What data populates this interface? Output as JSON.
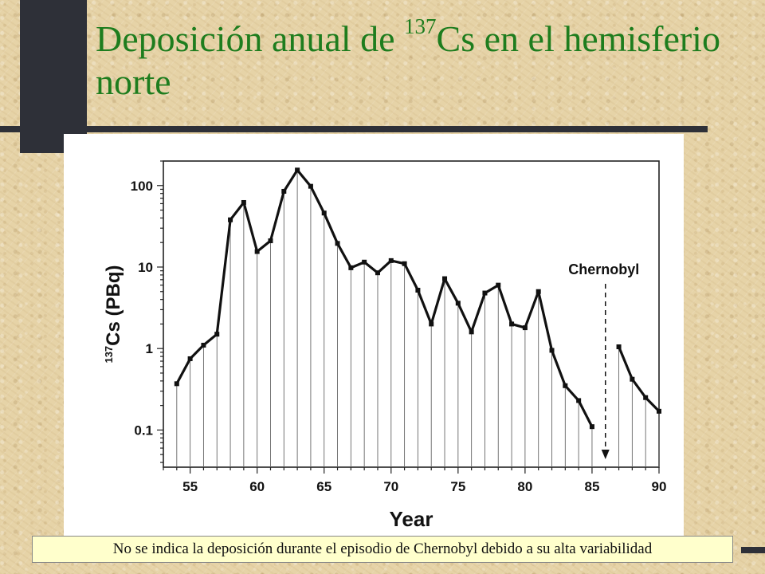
{
  "slide": {
    "title_part1": "Deposición anual de ",
    "title_sup": "137",
    "title_part2": "Cs en el hemisferio norte",
    "footnote": "No se indica la deposición durante el episodio de Chernobyl debido a su alta variabilidad"
  },
  "colors": {
    "title": "#1e7d1e",
    "background": "#e6d3a7",
    "dark_accent": "#2e3038",
    "note_background": "#ffffcc"
  },
  "chart_data": {
    "type": "line",
    "xlabel": "Year",
    "ylabel_sup": "137",
    "ylabel": "Cs (PBq)",
    "y_scale": "log",
    "xlim": [
      53,
      90
    ],
    "ylim": [
      0.035,
      200
    ],
    "x_ticks": [
      55,
      60,
      65,
      70,
      75,
      80,
      85,
      90
    ],
    "y_ticks": [
      {
        "value": 0.1,
        "label": "0.1"
      },
      {
        "value": 1,
        "label": "1"
      },
      {
        "value": 10,
        "label": "10"
      },
      {
        "value": 100,
        "label": "100"
      }
    ],
    "series": [
      {
        "x": [
          54,
          55,
          56,
          57,
          58,
          59,
          60,
          61,
          62,
          63,
          64,
          65,
          66,
          67,
          68,
          69,
          70,
          71,
          72,
          73,
          74,
          75,
          76,
          77,
          78,
          79,
          80,
          81,
          82,
          83,
          84,
          85
        ],
        "y": [
          0.37,
          0.75,
          1.1,
          1.5,
          38,
          62,
          15.5,
          21,
          85,
          155,
          98,
          46,
          19.5,
          9.8,
          11.5,
          8.5,
          12,
          11,
          5.2,
          2,
          7.2,
          3.6,
          1.6,
          4.8,
          6,
          2,
          1.8,
          5,
          0.95,
          0.35,
          0.23,
          0.11
        ]
      },
      {
        "x": [
          87,
          88,
          89,
          90
        ],
        "y": [
          1.05,
          0.42,
          0.25,
          0.17
        ]
      }
    ],
    "annotations": [
      {
        "text": "Chernobyl",
        "x": 86,
        "style": "dashed-arrow-down"
      }
    ],
    "grid": false,
    "drop_lines": true
  }
}
